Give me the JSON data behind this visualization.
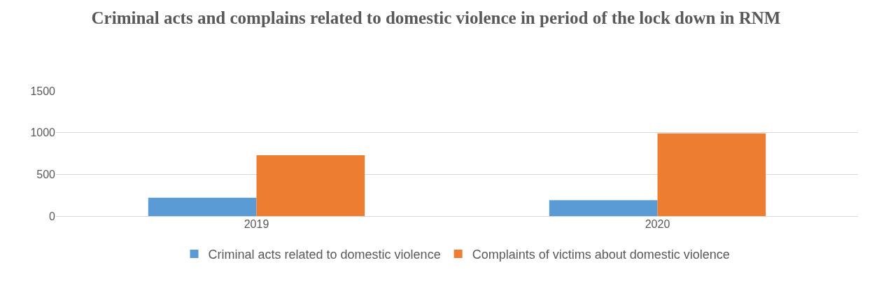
{
  "chart_data": {
    "type": "bar",
    "title": "Criminal acts and complains related to domestic violence in period of the lock down in RNM",
    "categories": [
      "2019",
      "2020"
    ],
    "series": [
      {
        "name": "Criminal acts related to domestic violence",
        "color": "#5b9bd5",
        "values": [
          220,
          190
        ]
      },
      {
        "name": "Complaints of victims about domestic violence",
        "color": "#ed7d31",
        "values": [
          730,
          990
        ]
      }
    ],
    "ylim": [
      0,
      1500
    ],
    "yticks": [
      0,
      500,
      1000,
      1500
    ],
    "grid": "y",
    "legend": "bottom"
  }
}
